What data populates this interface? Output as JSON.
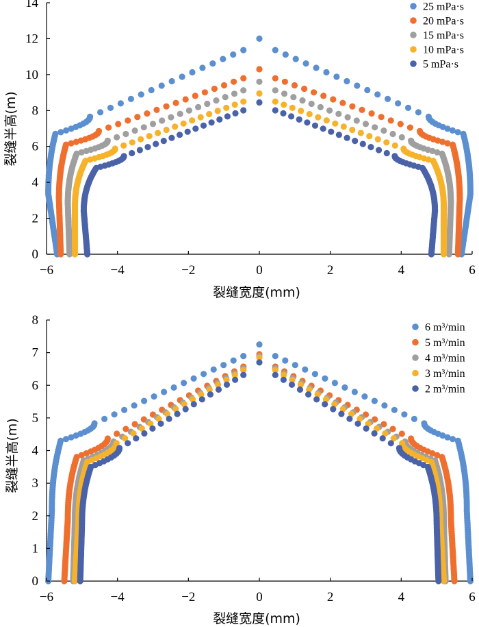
{
  "chart_data": [
    {
      "type": "scatter",
      "xlabel": "裂缝宽度(mm)",
      "ylabel": "裂缝半高(m)",
      "xlim": [
        -6,
        6
      ],
      "ylim": [
        0,
        14
      ],
      "xticks": [
        "−6",
        "−4",
        "−2",
        "0",
        "2",
        "4",
        "6"
      ],
      "yticks": [
        "0",
        "2",
        "4",
        "6",
        "8",
        "10",
        "12",
        "14"
      ],
      "legend_position": "top-right",
      "series": [
        {
          "name": "25 mPa·s",
          "color": "#5b8fd0",
          "top": 12.0,
          "wall_top": 6.7,
          "width_top": 5.75,
          "width_mid": 5.95,
          "width_bottom": 5.7
        },
        {
          "name": "20 mPa·s",
          "color": "#ef6f2e",
          "top": 10.3,
          "wall_top": 6.1,
          "width_top": 5.45,
          "width_mid": 5.65,
          "width_bottom": 5.6
        },
        {
          "name": "15 mPa·s",
          "color": "#9f9f9f",
          "top": 9.6,
          "wall_top": 5.6,
          "width_top": 5.15,
          "width_mid": 5.4,
          "width_bottom": 5.35
        },
        {
          "name": "10 mPa·s",
          "color": "#f7b22b",
          "top": 8.95,
          "wall_top": 5.2,
          "width_top": 4.9,
          "width_mid": 5.2,
          "width_bottom": 5.2
        },
        {
          "name": "5 mPa·s",
          "color": "#4a62a8",
          "top": 8.45,
          "wall_top": 4.8,
          "width_top": 4.6,
          "width_mid": 4.95,
          "width_bottom": 4.85
        }
      ]
    },
    {
      "type": "scatter",
      "xlabel": "裂缝宽度(mm)",
      "ylabel": "裂缝半高(m)",
      "xlim": [
        -6,
        6
      ],
      "ylim": [
        0,
        8
      ],
      "xticks": [
        "−6",
        "−4",
        "−2",
        "0",
        "2",
        "4",
        "6"
      ],
      "yticks": [
        "0",
        "1",
        "2",
        "3",
        "4",
        "5",
        "6",
        "7",
        "8"
      ],
      "legend_position": "top-right",
      "series": [
        {
          "name": "6 m³/min",
          "color": "#5b8fd0",
          "top": 7.25,
          "wall_top": 4.3,
          "width_top": 5.6,
          "width_mid": 5.85,
          "width_bottom": 5.95
        },
        {
          "name": "5 m³/min",
          "color": "#ef6f2e",
          "top": 6.95,
          "wall_top": 3.8,
          "width_top": 5.15,
          "width_mid": 5.4,
          "width_bottom": 5.5
        },
        {
          "name": "4 m³/min",
          "color": "#9f9f9f",
          "top": 6.9,
          "wall_top": 3.7,
          "width_top": 4.95,
          "width_mid": 5.2,
          "width_bottom": 5.25
        },
        {
          "name": "3 m³/min",
          "color": "#f7b22b",
          "top": 6.85,
          "wall_top": 3.65,
          "width_top": 4.85,
          "width_mid": 5.1,
          "width_bottom": 5.2
        },
        {
          "name": "2 m³/min",
          "color": "#4a62a8",
          "top": 6.7,
          "wall_top": 3.5,
          "width_top": 4.75,
          "width_mid": 5.0,
          "width_bottom": 5.05
        }
      ]
    }
  ]
}
